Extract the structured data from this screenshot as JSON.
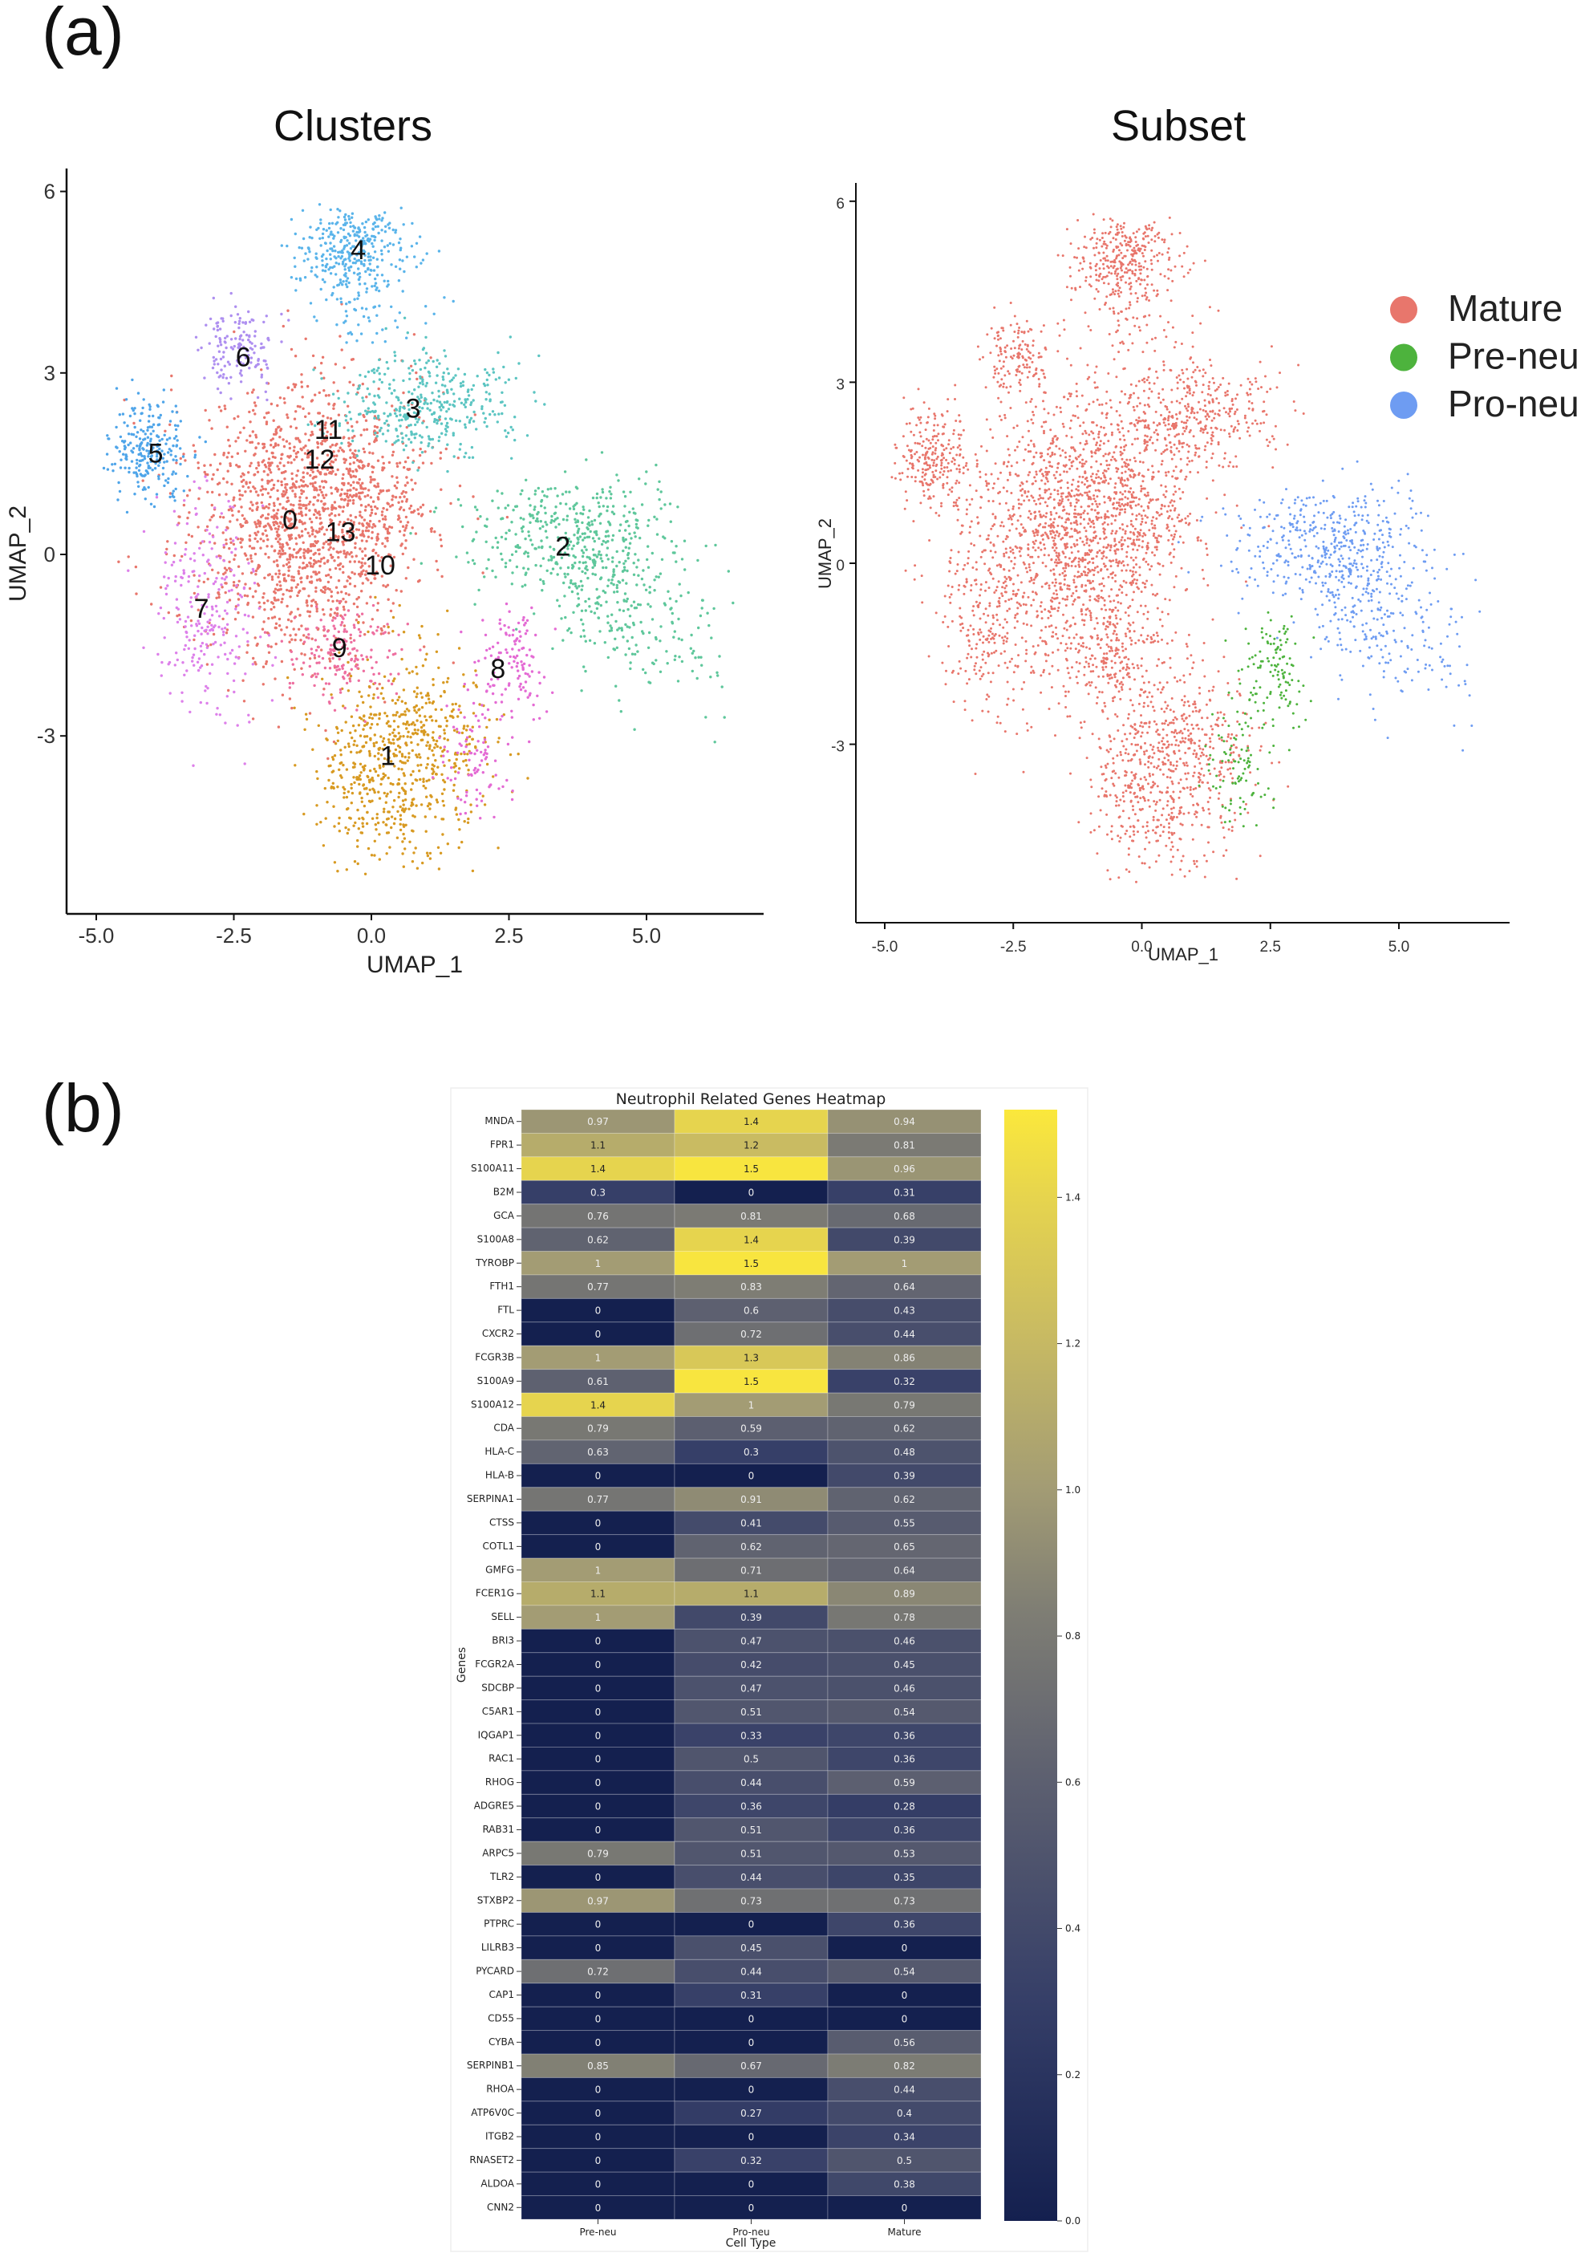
{
  "panels": {
    "a_label": "(a)",
    "b_label": "(b)"
  },
  "chart_data": [
    {
      "type": "scatter",
      "title": "Clusters",
      "xlabel": "UMAP_1",
      "ylabel": "UMAP_2",
      "xticks": [
        -5.0,
        -2.5,
        0.0,
        2.5,
        5.0
      ],
      "xtick_labels": [
        "-5.0",
        "-2.5",
        "0.0",
        "2.5",
        "5.0"
      ],
      "yticks": [
        6,
        3,
        0,
        -3
      ],
      "ytick_labels": [
        "6",
        "3",
        "0",
        "-3"
      ],
      "grid": false,
      "clusters": [
        {
          "label": "0",
          "x": -1.48,
          "y": 0.54,
          "color": "#E8766C"
        },
        {
          "label": "1",
          "x": 0.3,
          "y": -3.36,
          "color": "#D89A22"
        },
        {
          "label": "2",
          "x": 3.48,
          "y": 0.1,
          "color": "#5EC79B"
        },
        {
          "label": "3",
          "x": 0.76,
          "y": 2.38,
          "color": "#5CC5C2"
        },
        {
          "label": "4",
          "x": -0.24,
          "y": 5.0,
          "color": "#5AB4EA"
        },
        {
          "label": "5",
          "x": -3.92,
          "y": 1.64,
          "color": "#4FA5E9"
        },
        {
          "label": "6",
          "x": -2.33,
          "y": 3.23,
          "color": "#AE8FF0"
        },
        {
          "label": "7",
          "x": -3.09,
          "y": -0.93,
          "color": "#DD80EA"
        },
        {
          "label": "8",
          "x": 2.3,
          "y": -1.92,
          "color": "#E46BD4"
        },
        {
          "label": "9",
          "x": -0.58,
          "y": -1.58,
          "color": "#EE6FA0"
        },
        {
          "label": "10",
          "x": 0.16,
          "y": -0.21,
          "color": "#E8766C"
        },
        {
          "label": "11",
          "x": -0.78,
          "y": 2.03,
          "color": "#E8766C"
        },
        {
          "label": "12",
          "x": -0.94,
          "y": 1.54,
          "color": "#E8766C"
        },
        {
          "label": "13",
          "x": -0.56,
          "y": 0.34,
          "color": "#E8766C"
        }
      ]
    },
    {
      "type": "scatter",
      "title": "Subset",
      "xlabel": "UMAP_1",
      "ylabel": "UMAP_2",
      "xticks": [
        -5.0,
        -2.5,
        0.0,
        2.5,
        5.0
      ],
      "xtick_labels": [
        "-5.0",
        "-2.5",
        "0.0",
        "2.5",
        "5.0"
      ],
      "yticks": [
        6,
        3,
        0,
        -3
      ],
      "ytick_labels": [
        "6",
        "3",
        "0",
        "-3"
      ],
      "grid": false,
      "legend_position": "top-right",
      "legend": [
        {
          "name": "Mature",
          "color": "#E8766C"
        },
        {
          "name": "Pre-neu",
          "color": "#4DB33D"
        },
        {
          "name": "Pro-neu",
          "color": "#6E9CF2"
        }
      ]
    },
    {
      "type": "heatmap",
      "title": "Neutrophil Related Genes Heatmap",
      "xlabel": "Cell Type",
      "ylabel": "Genes",
      "columns": [
        "Pre-neu",
        "Pro-neu",
        "Mature"
      ],
      "colorbar_ticks": [
        0.0,
        0.2,
        0.4,
        0.6,
        0.8,
        1.0,
        1.2,
        1.4
      ],
      "colorbar_tick_labels": [
        "0.0",
        "0.2",
        "0.4",
        "0.6",
        "0.8",
        "1.0",
        "1.2",
        "1.4"
      ],
      "vmin": 0,
      "vmax": 1.52,
      "colormap": "cividis",
      "genes": [
        "MNDA",
        "FPR1",
        "S100A11",
        "B2M",
        "GCA",
        "S100A8",
        "TYROBP",
        "FTH1",
        "FTL",
        "CXCR2",
        "FCGR3B",
        "S100A9",
        "S100A12",
        "CDA",
        "HLA-C",
        "HLA-B",
        "SERPINA1",
        "CTSS",
        "COTL1",
        "GMFG",
        "FCER1G",
        "SELL",
        "BRI3",
        "FCGR2A",
        "SDCBP",
        "C5AR1",
        "IQGAP1",
        "RAC1",
        "RHOG",
        "ADGRE5",
        "RAB31",
        "ARPC5",
        "TLR2",
        "STXBP2",
        "PTPRC",
        "LILRB3",
        "PYCARD",
        "CAP1",
        "CD55",
        "CYBA",
        "SERPINB1",
        "RHOA",
        "ATP6V0C",
        "ITGB2",
        "RNASET2",
        "ALDOA",
        "CNN2"
      ],
      "values": [
        [
          0.97,
          1.4,
          0.94
        ],
        [
          1.1,
          1.2,
          0.81
        ],
        [
          1.4,
          1.5,
          0.96
        ],
        [
          0.3,
          0,
          0.31
        ],
        [
          0.76,
          0.81,
          0.68
        ],
        [
          0.62,
          1.4,
          0.39
        ],
        [
          1,
          1.5,
          1
        ],
        [
          0.77,
          0.83,
          0.64
        ],
        [
          0,
          0.6,
          0.43
        ],
        [
          0,
          0.72,
          0.44
        ],
        [
          1,
          1.3,
          0.86
        ],
        [
          0.61,
          1.5,
          0.32
        ],
        [
          1.4,
          1,
          0.79
        ],
        [
          0.79,
          0.59,
          0.62
        ],
        [
          0.63,
          0.3,
          0.48
        ],
        [
          0,
          0,
          0.39
        ],
        [
          0.77,
          0.91,
          0.62
        ],
        [
          0,
          0.41,
          0.55
        ],
        [
          0,
          0.62,
          0.65
        ],
        [
          1,
          0.71,
          0.64
        ],
        [
          1.1,
          1.1,
          0.89
        ],
        [
          1,
          0.39,
          0.78
        ],
        [
          0,
          0.47,
          0.46
        ],
        [
          0,
          0.42,
          0.45
        ],
        [
          0,
          0.47,
          0.46
        ],
        [
          0,
          0.51,
          0.54
        ],
        [
          0,
          0.33,
          0.36
        ],
        [
          0,
          0.5,
          0.36
        ],
        [
          0,
          0.44,
          0.59
        ],
        [
          0,
          0.36,
          0.28
        ],
        [
          0,
          0.51,
          0.36
        ],
        [
          0.79,
          0.51,
          0.53
        ],
        [
          0,
          0.44,
          0.35
        ],
        [
          0.97,
          0.73,
          0.73
        ],
        [
          0,
          0,
          0.36
        ],
        [
          0,
          0.45,
          0
        ],
        [
          0.72,
          0.44,
          0.54
        ],
        [
          0,
          0.31,
          0
        ],
        [
          0,
          0,
          0
        ],
        [
          0,
          0,
          0.56
        ],
        [
          0.85,
          0.67,
          0.82
        ],
        [
          0,
          0,
          0.44
        ],
        [
          0,
          0.27,
          0.4
        ],
        [
          0,
          0,
          0.34
        ],
        [
          0,
          0.32,
          0.5
        ],
        [
          0,
          0,
          0.38
        ],
        [
          0,
          0,
          0
        ]
      ]
    }
  ]
}
